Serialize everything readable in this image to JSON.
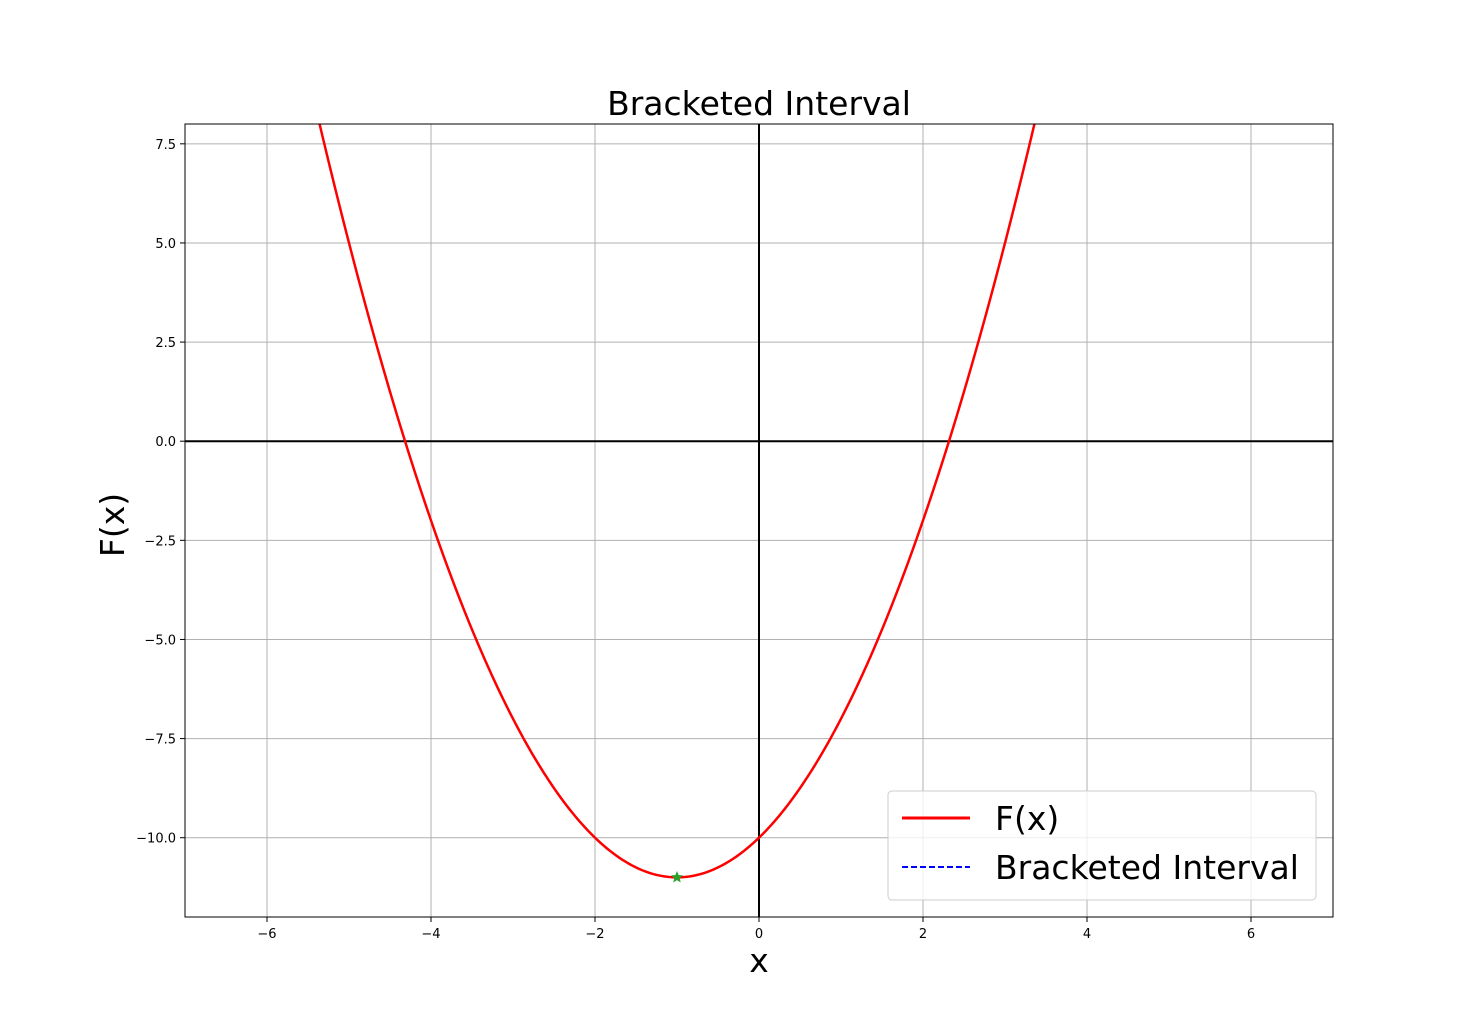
{
  "chart_data": {
    "type": "line",
    "title": "Bracketed Interval",
    "xlabel": "x",
    "ylabel": "F(x)",
    "xlim": [
      -7,
      7
    ],
    "ylim": [
      -12,
      8
    ],
    "grid": true,
    "xticks": [
      -6,
      -4,
      -2,
      0,
      2,
      4,
      6
    ],
    "xtick_labels": [
      "−6",
      "−4",
      "−2",
      "0",
      "2",
      "4",
      "6"
    ],
    "yticks": [
      -10,
      -7.5,
      -5,
      -2.5,
      0,
      2.5,
      5,
      7.5
    ],
    "ytick_labels": [
      "−10.0",
      "−7.5",
      "−5.0",
      "−2.5",
      "0.0",
      "2.5",
      "5.0",
      "7.5"
    ],
    "reference_lines": {
      "x_axis_at_y": 0,
      "y_axis_at_x": 0,
      "color": "#000000"
    },
    "series": [
      {
        "name": "F(x)",
        "color": "#ff0000",
        "style": "solid",
        "function": "x^2 + 2x - 10",
        "x_range": [
          -7,
          7
        ]
      },
      {
        "name": "Bracketed Interval",
        "color": "#0000ff",
        "style": "dashed",
        "x": [],
        "y": []
      }
    ],
    "markers": [
      {
        "x": -1,
        "y": -11,
        "color": "#2ca02c",
        "shape": "star"
      }
    ],
    "legend": {
      "location": "lower right"
    }
  }
}
